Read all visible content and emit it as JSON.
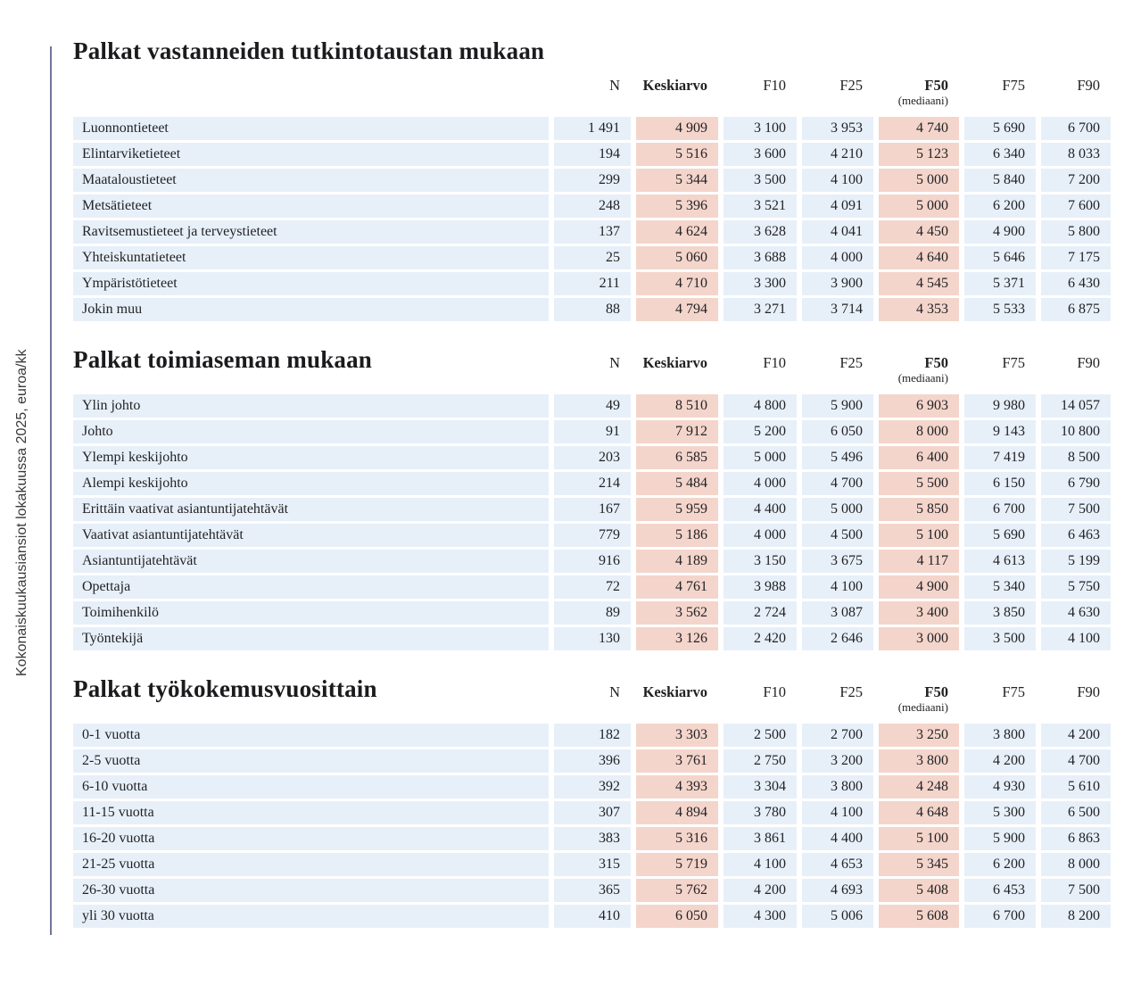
{
  "sidebar": {
    "vertical_label": "Kokonaiskuukausiansiot lokakuussa 2025, euroa/kk"
  },
  "columns": {
    "n": "N",
    "keskiarvo": "Keskiarvo",
    "f10": "F10",
    "f25": "F25",
    "f50": "F50",
    "f50_sub": "(mediaani)",
    "f75": "F75",
    "f90": "F90"
  },
  "sections": [
    {
      "title": "Palkat vastanneiden tutkintotaustan mukaan",
      "rows": [
        {
          "label": "Luonnontieteet",
          "n": "1 491",
          "keskiarvo": "4 909",
          "f10": "3 100",
          "f25": "3 953",
          "f50": "4 740",
          "f75": "5 690",
          "f90": "6 700"
        },
        {
          "label": "Elintarviketieteet",
          "n": "194",
          "keskiarvo": "5 516",
          "f10": "3 600",
          "f25": "4 210",
          "f50": "5 123",
          "f75": "6 340",
          "f90": "8 033"
        },
        {
          "label": "Maataloustieteet",
          "n": "299",
          "keskiarvo": "5 344",
          "f10": "3 500",
          "f25": "4 100",
          "f50": "5 000",
          "f75": "5 840",
          "f90": "7 200"
        },
        {
          "label": "Metsätieteet",
          "n": "248",
          "keskiarvo": "5 396",
          "f10": "3 521",
          "f25": "4 091",
          "f50": "5 000",
          "f75": "6 200",
          "f90": "7 600"
        },
        {
          "label": "Ravitsemustieteet ja terveystieteet",
          "n": "137",
          "keskiarvo": "4 624",
          "f10": "3 628",
          "f25": "4 041",
          "f50": "4 450",
          "f75": "4 900",
          "f90": "5 800"
        },
        {
          "label": "Yhteiskuntatieteet",
          "n": "25",
          "keskiarvo": "5 060",
          "f10": "3 688",
          "f25": "4 000",
          "f50": "4 640",
          "f75": "5 646",
          "f90": "7 175"
        },
        {
          "label": "Ympäristötieteet",
          "n": "211",
          "keskiarvo": "4 710",
          "f10": "3 300",
          "f25": "3 900",
          "f50": "4 545",
          "f75": "5 371",
          "f90": "6 430"
        },
        {
          "label": "Jokin muu",
          "n": "88",
          "keskiarvo": "4 794",
          "f10": "3 271",
          "f25": "3 714",
          "f50": "4 353",
          "f75": "5 533",
          "f90": "6 875"
        }
      ]
    },
    {
      "title": "Palkat toimiaseman mukaan",
      "rows": [
        {
          "label": "Ylin johto",
          "n": "49",
          "keskiarvo": "8 510",
          "f10": "4 800",
          "f25": "5 900",
          "f50": "6 903",
          "f75": "9 980",
          "f90": "14 057"
        },
        {
          "label": "Johto",
          "n": "91",
          "keskiarvo": "7 912",
          "f10": "5 200",
          "f25": "6 050",
          "f50": "8 000",
          "f75": "9 143",
          "f90": "10 800"
        },
        {
          "label": "Ylempi keskijohto",
          "n": "203",
          "keskiarvo": "6 585",
          "f10": "5 000",
          "f25": "5 496",
          "f50": "6 400",
          "f75": "7 419",
          "f90": "8 500"
        },
        {
          "label": "Alempi keskijohto",
          "n": "214",
          "keskiarvo": "5 484",
          "f10": "4 000",
          "f25": "4 700",
          "f50": "5 500",
          "f75": "6 150",
          "f90": "6 790"
        },
        {
          "label": "Erittäin vaativat asiantuntijatehtävät",
          "n": "167",
          "keskiarvo": "5 959",
          "f10": "4 400",
          "f25": "5 000",
          "f50": "5 850",
          "f75": "6 700",
          "f90": "7 500"
        },
        {
          "label": "Vaativat asiantuntijatehtävät",
          "n": "779",
          "keskiarvo": "5 186",
          "f10": "4 000",
          "f25": "4 500",
          "f50": "5 100",
          "f75": "5 690",
          "f90": "6 463"
        },
        {
          "label": "Asiantuntijatehtävät",
          "n": "916",
          "keskiarvo": "4 189",
          "f10": "3 150",
          "f25": "3 675",
          "f50": "4 117",
          "f75": "4 613",
          "f90": "5 199"
        },
        {
          "label": "Opettaja",
          "n": "72",
          "keskiarvo": "4 761",
          "f10": "3 988",
          "f25": "4 100",
          "f50": "4 900",
          "f75": "5 340",
          "f90": "5 750"
        },
        {
          "label": "Toimihenkilö",
          "n": "89",
          "keskiarvo": "3 562",
          "f10": "2 724",
          "f25": "3 087",
          "f50": "3 400",
          "f75": "3 850",
          "f90": "4 630"
        },
        {
          "label": "Työntekijä",
          "n": "130",
          "keskiarvo": "3 126",
          "f10": "2 420",
          "f25": "2 646",
          "f50": "3 000",
          "f75": "3 500",
          "f90": "4 100"
        }
      ]
    },
    {
      "title": "Palkat työkokemusvuosittain",
      "rows": [
        {
          "label": "0-1 vuotta",
          "n": "182",
          "keskiarvo": "3 303",
          "f10": "2 500",
          "f25": "2 700",
          "f50": "3 250",
          "f75": "3 800",
          "f90": "4 200"
        },
        {
          "label": "2-5 vuotta",
          "n": "396",
          "keskiarvo": "3 761",
          "f10": "2 750",
          "f25": "3 200",
          "f50": "3 800",
          "f75": "4 200",
          "f90": "4 700"
        },
        {
          "label": "6-10 vuotta",
          "n": "392",
          "keskiarvo": "4 393",
          "f10": "3 304",
          "f25": "3 800",
          "f50": "4 248",
          "f75": "4 930",
          "f90": "5 610"
        },
        {
          "label": "11-15 vuotta",
          "n": "307",
          "keskiarvo": "4 894",
          "f10": "3 780",
          "f25": "4 100",
          "f50": "4 648",
          "f75": "5 300",
          "f90": "6 500"
        },
        {
          "label": "16-20 vuotta",
          "n": "383",
          "keskiarvo": "5 316",
          "f10": "3 861",
          "f25": "4 400",
          "f50": "5 100",
          "f75": "5 900",
          "f90": "6 863"
        },
        {
          "label": "21-25 vuotta",
          "n": "315",
          "keskiarvo": "5 719",
          "f10": "4 100",
          "f25": "4 653",
          "f50": "5 345",
          "f75": "6 200",
          "f90": "8 000"
        },
        {
          "label": "26-30 vuotta",
          "n": "365",
          "keskiarvo": "5 762",
          "f10": "4 200",
          "f25": "4 693",
          "f50": "5 408",
          "f75": "6 453",
          "f90": "7 500"
        },
        {
          "label": "yli 30 vuotta",
          "n": "410",
          "keskiarvo": "6 050",
          "f10": "4 300",
          "f25": "5 006",
          "f50": "5 608",
          "f75": "6 700",
          "f90": "8 200"
        }
      ]
    }
  ],
  "colors": {
    "row_bg": "#e7f0f9",
    "hl_bg": "#f4d5cb",
    "rule": "#73769a",
    "text": "#222225",
    "title": "#1b1b1e"
  }
}
